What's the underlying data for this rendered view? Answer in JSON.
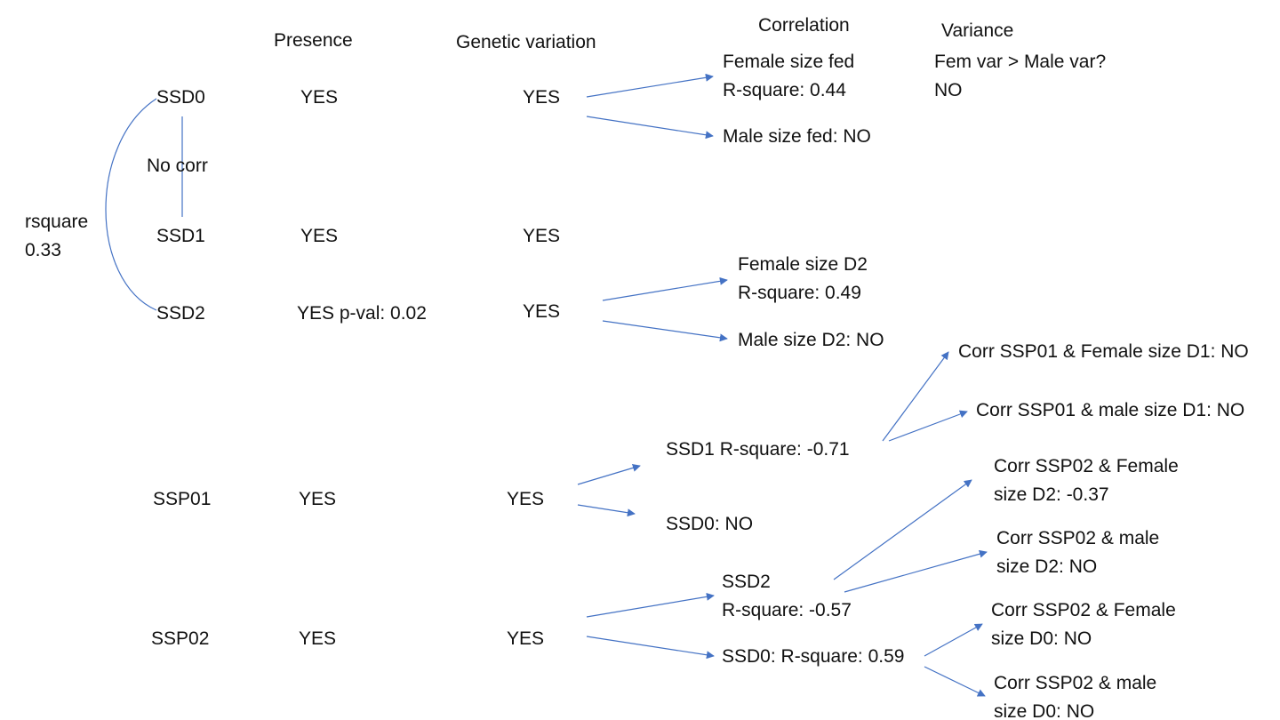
{
  "colors": {
    "connector": "#4472C4",
    "text": "#111111",
    "background": "#ffffff"
  },
  "headers": {
    "presence": "Presence",
    "genetic_variation": "Genetic variation",
    "correlation": "Correlation",
    "variance": "Variance"
  },
  "rows": [
    {
      "trait": "SSD0",
      "presence": "YES",
      "genetic_variation": "YES"
    },
    {
      "trait": "SSD1",
      "presence": "YES",
      "genetic_variation": "YES"
    },
    {
      "trait": "SSD2",
      "presence": "YES p-val: 0.02",
      "genetic_variation": "YES"
    },
    {
      "trait": "SSP01",
      "presence": "YES",
      "genetic_variation": "YES"
    },
    {
      "trait": "SSP02",
      "presence": "YES",
      "genetic_variation": "YES"
    }
  ],
  "side_notes": {
    "no_corr": "No corr",
    "rsquare_label": "rsquare",
    "rsquare_value": "0.33"
  },
  "correlations": {
    "ssd0_female": [
      "Female size fed",
      "R-square: 0.44"
    ],
    "ssd0_male": "Male size fed: NO",
    "ssd2_female": [
      "Female size D2",
      "R-square: 0.49"
    ],
    "ssd2_male": "Male size D2: NO",
    "ssp01_ssd1": "SSD1 R-square: -0.71",
    "ssp01_ssd0": "SSD0: NO",
    "ssp02_ssd2": [
      "SSD2",
      "R-square: -0.57"
    ],
    "ssp02_ssd0": "SSD0: R-square: 0.59"
  },
  "sub_correlations": {
    "ssp01_female_d1": "Corr SSP01 & Female size D1: NO",
    "ssp01_male_d1": "Corr SSP01 & male size D1: NO",
    "ssp02_female_d2": [
      "Corr SSP02 & Female",
      "size D2: -0.37"
    ],
    "ssp02_male_d2": [
      "Corr SSP02 & male",
      "size D2: NO"
    ],
    "ssp02_female_d0": [
      "Corr SSP02 & Female",
      "size D0: NO"
    ],
    "ssp02_male_d0": [
      "Corr SSP02 & male",
      "size D0: NO"
    ]
  },
  "variance": {
    "question": "Fem var > Male var?",
    "answer": "NO"
  }
}
